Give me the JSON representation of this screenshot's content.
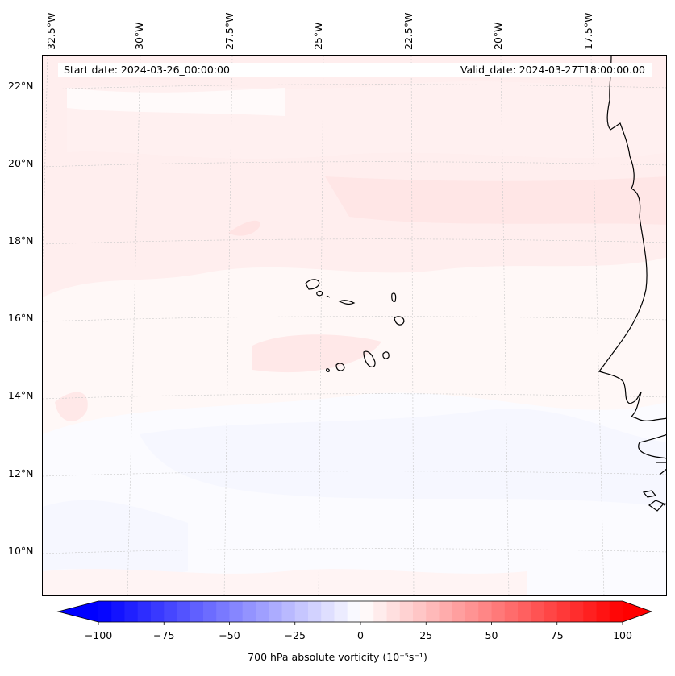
{
  "map": {
    "start_date_label": "Start date: 2024-03-26_00:00:00",
    "valid_date_label": "Valid_date: 2024-03-27T18:00:00.00",
    "longitude_labels": [
      "32.5°W",
      "30°W",
      "27.5°W",
      "25°W",
      "22.5°W",
      "20°W",
      "17.5°W"
    ],
    "latitude_labels": [
      "22°N",
      "20°N",
      "18°N",
      "16°N",
      "14°N",
      "12°N",
      "10°N"
    ],
    "coastline_color": "#000000",
    "gridline_color": "#c8c8c8",
    "field_colors": {
      "background": "#fff8f7",
      "positive_weak": "#ffecec",
      "positive_mid": "#ffe3e3",
      "negative_weak": "#f8f9ff"
    }
  },
  "colorbar": {
    "label": "700 hPa absolute vorticity (10⁻⁵s⁻¹)",
    "min": -100,
    "max": 100,
    "ticks": [
      "−100",
      "−75",
      "−50",
      "−25",
      "0",
      "25",
      "50",
      "75",
      "100"
    ],
    "tick_values": [
      -100,
      -75,
      -50,
      -25,
      0,
      25,
      50,
      75,
      100
    ],
    "colormap": "bwr",
    "extend": "both"
  }
}
